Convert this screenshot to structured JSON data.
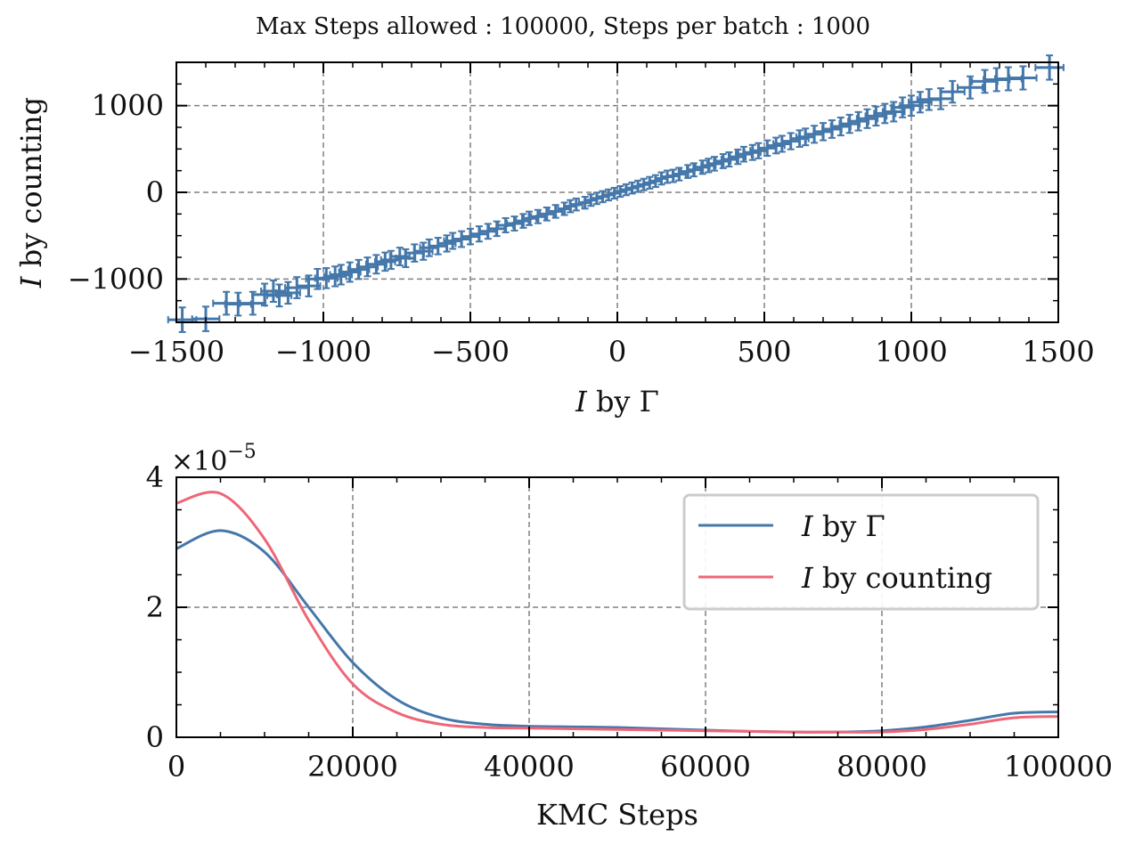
{
  "figure": {
    "suptitle": "Max Steps allowed : 100000, Steps per batch : 1000"
  },
  "colors": {
    "series_gamma": "#4477aa",
    "series_counting": "#ee6677",
    "grid": "#808080",
    "axes": "#000000"
  },
  "chart_data": [
    {
      "id": "top",
      "type": "scatter",
      "style": "errorbar",
      "title": "",
      "xlabel": "I by Γ",
      "ylabel": "I by counting",
      "xlim": [
        -1500,
        1500
      ],
      "ylim": [
        -1500,
        1500
      ],
      "xticks": [
        -1500,
        -1000,
        -500,
        0,
        500,
        1000,
        1500
      ],
      "xtick_labels": [
        "−1500",
        "−1000",
        "−500",
        "0",
        "500",
        "1000",
        "1500"
      ],
      "yticks": [
        -1000,
        0,
        1000
      ],
      "ytick_labels": [
        "−1000",
        "0",
        "1000"
      ],
      "grid": true,
      "series": [
        {
          "color": "#4477aa",
          "points": [
            [
              -1480,
              -1470
            ],
            [
              -1400,
              -1460
            ],
            [
              -1330,
              -1280
            ],
            [
              -1290,
              -1290
            ],
            [
              -1240,
              -1280
            ],
            [
              -1200,
              -1180
            ],
            [
              -1170,
              -1140
            ],
            [
              -1150,
              -1190
            ],
            [
              -1120,
              -1160
            ],
            [
              -1090,
              -1100
            ],
            [
              -1050,
              -1080
            ],
            [
              -1020,
              -1000
            ],
            [
              -990,
              -990
            ],
            [
              -960,
              -970
            ],
            [
              -940,
              -950
            ],
            [
              -910,
              -920
            ],
            [
              -880,
              -890
            ],
            [
              -850,
              -860
            ],
            [
              -820,
              -830
            ],
            [
              -790,
              -800
            ],
            [
              -770,
              -780
            ],
            [
              -740,
              -740
            ],
            [
              -720,
              -760
            ],
            [
              -690,
              -700
            ],
            [
              -660,
              -680
            ],
            [
              -640,
              -640
            ],
            [
              -610,
              -620
            ],
            [
              -580,
              -590
            ],
            [
              -560,
              -560
            ],
            [
              -530,
              -540
            ],
            [
              -500,
              -510
            ],
            [
              -470,
              -480
            ],
            [
              -440,
              -450
            ],
            [
              -410,
              -420
            ],
            [
              -380,
              -380
            ],
            [
              -350,
              -360
            ],
            [
              -320,
              -330
            ],
            [
              -300,
              -300
            ],
            [
              -270,
              -280
            ],
            [
              -240,
              -250
            ],
            [
              -210,
              -220
            ],
            [
              -180,
              -190
            ],
            [
              -160,
              -160
            ],
            [
              -140,
              -140
            ],
            [
              -110,
              -120
            ],
            [
              -90,
              -90
            ],
            [
              -70,
              -70
            ],
            [
              -50,
              -50
            ],
            [
              -30,
              -30
            ],
            [
              -10,
              -10
            ],
            [
              10,
              10
            ],
            [
              30,
              30
            ],
            [
              50,
              50
            ],
            [
              70,
              70
            ],
            [
              90,
              90
            ],
            [
              110,
              110
            ],
            [
              130,
              130
            ],
            [
              150,
              160
            ],
            [
              170,
              180
            ],
            [
              190,
              190
            ],
            [
              210,
              210
            ],
            [
              240,
              240
            ],
            [
              260,
              260
            ],
            [
              290,
              290
            ],
            [
              310,
              310
            ],
            [
              330,
              330
            ],
            [
              360,
              360
            ],
            [
              380,
              380
            ],
            [
              410,
              410
            ],
            [
              430,
              440
            ],
            [
              460,
              460
            ],
            [
              480,
              480
            ],
            [
              510,
              510
            ],
            [
              540,
              540
            ],
            [
              560,
              560
            ],
            [
              590,
              590
            ],
            [
              620,
              620
            ],
            [
              640,
              640
            ],
            [
              670,
              670
            ],
            [
              700,
              700
            ],
            [
              730,
              730
            ],
            [
              760,
              760
            ],
            [
              790,
              790
            ],
            [
              820,
              820
            ],
            [
              850,
              850
            ],
            [
              880,
              880
            ],
            [
              910,
              910
            ],
            [
              940,
              930
            ],
            [
              970,
              980
            ],
            [
              1000,
              1000
            ],
            [
              1030,
              1040
            ],
            [
              1060,
              1070
            ],
            [
              1100,
              1080
            ],
            [
              1140,
              1160
            ],
            [
              1200,
              1210
            ],
            [
              1250,
              1280
            ],
            [
              1290,
              1300
            ],
            [
              1330,
              1310
            ],
            [
              1380,
              1320
            ],
            [
              1470,
              1440
            ]
          ]
        }
      ]
    },
    {
      "id": "bottom",
      "type": "line",
      "title": "",
      "xlabel": "KMC Steps",
      "ylabel": "",
      "offset_text": "×10",
      "offset_exponent": "−5",
      "xlim": [
        0,
        100000
      ],
      "ylim": [
        0,
        4
      ],
      "xticks": [
        0,
        20000,
        40000,
        60000,
        80000,
        100000
      ],
      "xtick_labels": [
        "0",
        "20000",
        "40000",
        "60000",
        "80000",
        "100000"
      ],
      "yticks": [
        0,
        2,
        4
      ],
      "ytick_labels": [
        "0",
        "2",
        "4"
      ],
      "grid": true,
      "legend": "top-right",
      "x": [
        0,
        5000,
        10000,
        15000,
        20000,
        25000,
        30000,
        35000,
        40000,
        45000,
        50000,
        55000,
        60000,
        65000,
        70000,
        75000,
        80000,
        85000,
        90000,
        95000,
        100000
      ],
      "series": [
        {
          "name": "I by Γ",
          "color": "#4477aa",
          "values": [
            2.9,
            3.18,
            2.85,
            2.0,
            1.15,
            0.58,
            0.3,
            0.2,
            0.17,
            0.16,
            0.15,
            0.13,
            0.11,
            0.09,
            0.08,
            0.08,
            0.1,
            0.16,
            0.26,
            0.37,
            0.39
          ]
        },
        {
          "name": "I by counting",
          "color": "#ee6677",
          "values": [
            3.6,
            3.75,
            3.05,
            1.8,
            0.82,
            0.38,
            0.2,
            0.15,
            0.14,
            0.13,
            0.12,
            0.11,
            0.1,
            0.09,
            0.08,
            0.08,
            0.08,
            0.12,
            0.2,
            0.3,
            0.32
          ]
        }
      ]
    }
  ]
}
